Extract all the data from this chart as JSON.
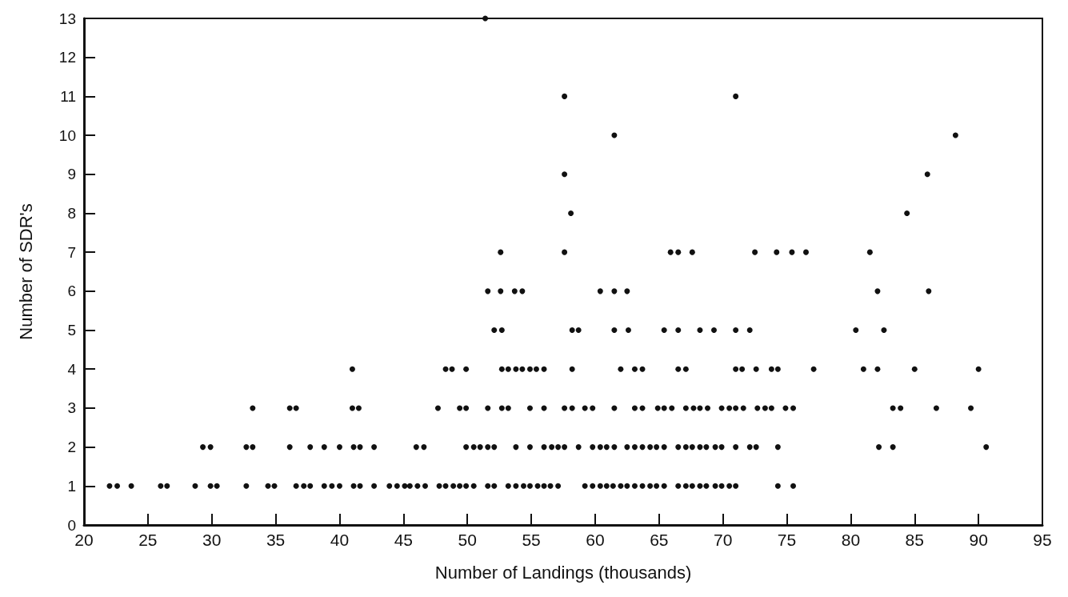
{
  "chart_data": {
    "type": "scatter",
    "xlabel": "Number of Landings (thousands)",
    "ylabel": "Number of SDR's",
    "xlim": [
      20,
      95
    ],
    "xticks": [
      20,
      25,
      30,
      35,
      40,
      45,
      50,
      55,
      60,
      65,
      70,
      75,
      80,
      85,
      90,
      95
    ],
    "ylim": [
      0,
      13
    ],
    "yticks": [
      0,
      1,
      2,
      3,
      4,
      5,
      6,
      7,
      8,
      9,
      10,
      11,
      12,
      13
    ],
    "marker": "circle",
    "series": [
      {
        "color": "#111111",
        "x": [
          22.0,
          22.6,
          23.7,
          26.0,
          26.5,
          28.7,
          29.9,
          30.4,
          32.7,
          34.4,
          34.9,
          36.6,
          37.2,
          37.7,
          38.8,
          39.4,
          40.0,
          41.1,
          41.6,
          42.7,
          43.9,
          44.5,
          45.1,
          45.5,
          46.1,
          46.7,
          47.8,
          48.3,
          48.9,
          49.4,
          49.9,
          50.5,
          51.6,
          52.1,
          53.2,
          53.8,
          54.4,
          54.9,
          55.5,
          56.0,
          56.5,
          57.1,
          59.2,
          59.8,
          60.4,
          60.9,
          61.4,
          62.0,
          62.5,
          63.1,
          63.7,
          64.3,
          64.8,
          65.4,
          66.5,
          67.1,
          67.6,
          68.2,
          68.7,
          69.4,
          69.9,
          70.5,
          71.0,
          74.3,
          75.5,
          29.3,
          29.9,
          32.7,
          33.2,
          36.1,
          37.7,
          38.8,
          40.0,
          41.1,
          41.6,
          42.7,
          46.0,
          46.6,
          49.9,
          50.5,
          51.0,
          51.6,
          52.1,
          53.8,
          54.9,
          56.0,
          56.6,
          57.1,
          57.6,
          58.7,
          59.8,
          60.4,
          60.9,
          61.5,
          62.5,
          63.1,
          63.7,
          64.3,
          64.8,
          65.4,
          66.5,
          67.1,
          67.6,
          68.2,
          68.7,
          69.4,
          69.9,
          71.0,
          72.1,
          72.6,
          74.3,
          82.2,
          83.3,
          90.6,
          33.2,
          36.1,
          36.6,
          41.0,
          41.5,
          47.7,
          49.4,
          49.9,
          51.6,
          52.7,
          53.2,
          54.9,
          56.0,
          57.6,
          58.2,
          59.2,
          59.8,
          61.5,
          63.1,
          63.7,
          64.9,
          65.4,
          66.0,
          67.1,
          67.7,
          68.2,
          68.8,
          69.9,
          70.5,
          71.0,
          71.6,
          72.7,
          73.3,
          73.8,
          74.9,
          75.5,
          83.3,
          83.9,
          86.7,
          89.4,
          41.0,
          48.3,
          48.8,
          49.9,
          52.7,
          53.2,
          53.8,
          54.3,
          54.9,
          55.4,
          56.0,
          58.2,
          62.0,
          63.1,
          63.7,
          66.5,
          67.1,
          71.0,
          71.5,
          72.6,
          73.8,
          74.3,
          77.1,
          81.0,
          82.1,
          85.0,
          90.0,
          52.1,
          52.7,
          58.2,
          58.7,
          61.5,
          62.6,
          65.4,
          66.5,
          68.2,
          69.3,
          71.0,
          72.1,
          80.4,
          82.6,
          51.6,
          52.6,
          53.7,
          54.3,
          60.4,
          61.5,
          62.5,
          82.1,
          86.1,
          52.6,
          57.6,
          65.9,
          66.5,
          67.6,
          72.5,
          74.2,
          75.4,
          76.5,
          81.5,
          58.1,
          84.4,
          57.6,
          86.0,
          61.5,
          88.2,
          57.6,
          71.0,
          51.4
        ],
        "values": [
          1,
          1,
          1,
          1,
          1,
          1,
          1,
          1,
          1,
          1,
          1,
          1,
          1,
          1,
          1,
          1,
          1,
          1,
          1,
          1,
          1,
          1,
          1,
          1,
          1,
          1,
          1,
          1,
          1,
          1,
          1,
          1,
          1,
          1,
          1,
          1,
          1,
          1,
          1,
          1,
          1,
          1,
          1,
          1,
          1,
          1,
          1,
          1,
          1,
          1,
          1,
          1,
          1,
          1,
          1,
          1,
          1,
          1,
          1,
          1,
          1,
          1,
          1,
          1,
          1,
          2,
          2,
          2,
          2,
          2,
          2,
          2,
          2,
          2,
          2,
          2,
          2,
          2,
          2,
          2,
          2,
          2,
          2,
          2,
          2,
          2,
          2,
          2,
          2,
          2,
          2,
          2,
          2,
          2,
          2,
          2,
          2,
          2,
          2,
          2,
          2,
          2,
          2,
          2,
          2,
          2,
          2,
          2,
          2,
          2,
          2,
          2,
          2,
          2,
          3,
          3,
          3,
          3,
          3,
          3,
          3,
          3,
          3,
          3,
          3,
          3,
          3,
          3,
          3,
          3,
          3,
          3,
          3,
          3,
          3,
          3,
          3,
          3,
          3,
          3,
          3,
          3,
          3,
          3,
          3,
          3,
          3,
          3,
          3,
          3,
          3,
          3,
          3,
          3,
          4,
          4,
          4,
          4,
          4,
          4,
          4,
          4,
          4,
          4,
          4,
          4,
          4,
          4,
          4,
          4,
          4,
          4,
          4,
          4,
          4,
          4,
          4,
          4,
          4,
          4,
          4,
          5,
          5,
          5,
          5,
          5,
          5,
          5,
          5,
          5,
          5,
          5,
          5,
          5,
          5,
          6,
          6,
          6,
          6,
          6,
          6,
          6,
          6,
          6,
          7,
          7,
          7,
          7,
          7,
          7,
          7,
          7,
          7,
          7,
          8,
          8,
          9,
          9,
          10,
          10,
          11,
          11,
          13
        ]
      }
    ]
  }
}
